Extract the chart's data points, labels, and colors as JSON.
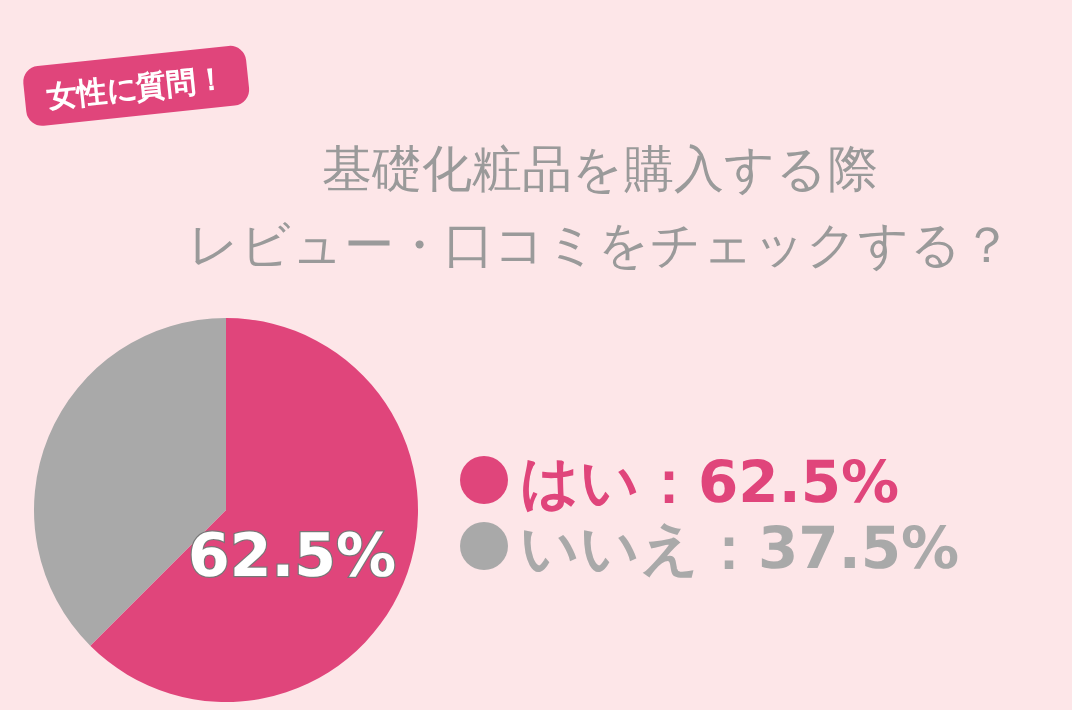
{
  "chart_data": {
    "type": "pie",
    "title": "基礎化粧品を購入する際",
    "subtitle": "レビュー・口コミをチェックする？",
    "categories": [
      "はい：62.5%",
      "いいえ：37.5%"
    ],
    "values": [
      62.5,
      37.5
    ],
    "colors": [
      "#e0457b",
      "#a9a9a9"
    ],
    "value_labels": [
      "62.5%",
      null
    ],
    "legend": "right",
    "annotations": [
      "女性に質問！"
    ]
  }
}
